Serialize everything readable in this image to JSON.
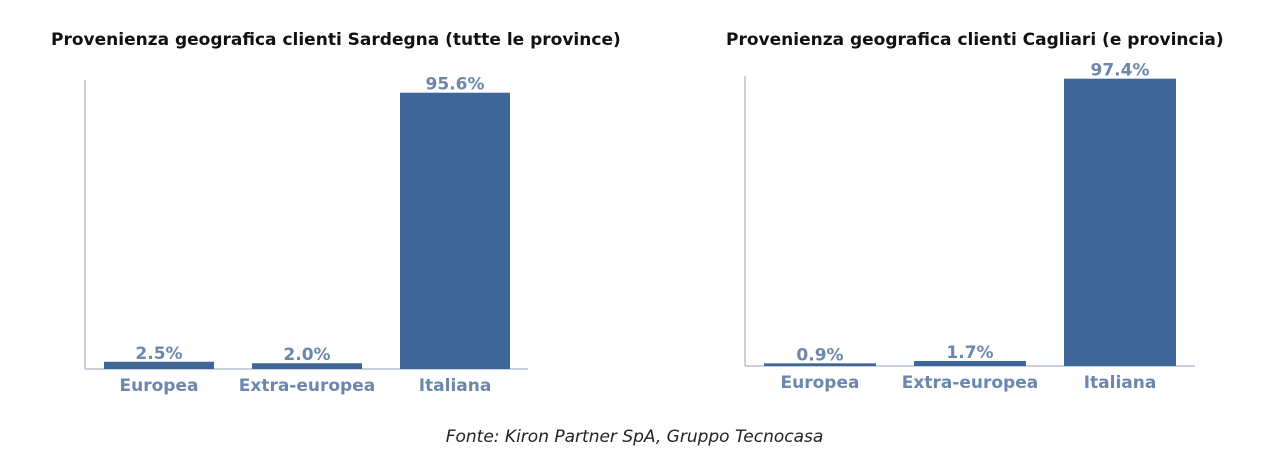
{
  "colors": {
    "bar": "#3e6698",
    "label": "#6b87ad",
    "axis": "#b7c0cf"
  },
  "chart_data": [
    {
      "type": "bar",
      "title": "Provenienza geografica clienti Sardegna (tutte le province)",
      "categories": [
        "Europea",
        "Extra-europea",
        "Italiana"
      ],
      "values": [
        2.5,
        2.0,
        95.6
      ],
      "value_labels": [
        "2.5%",
        "2.0%",
        "95.6%"
      ],
      "ylim": [
        0,
        100
      ],
      "grid": false,
      "legend": "none"
    },
    {
      "type": "bar",
      "title": "Provenienza geografica clienti Cagliari (e provincia)",
      "categories": [
        "Europea",
        "Extra-europea",
        "Italiana"
      ],
      "values": [
        0.9,
        1.7,
        97.4
      ],
      "value_labels": [
        "0.9%",
        "1.7%",
        "97.4%"
      ],
      "ylim": [
        0,
        100
      ],
      "grid": false,
      "legend": "none"
    }
  ],
  "footer": {
    "source": "Fonte: Kiron Partner SpA, Gruppo Tecnocasa"
  }
}
